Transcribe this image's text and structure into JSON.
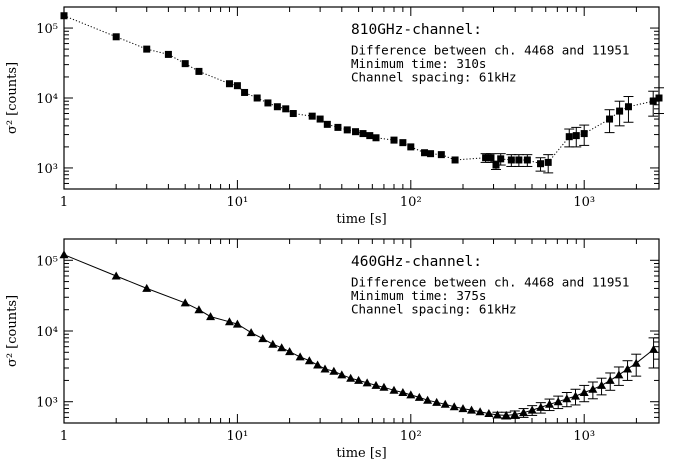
{
  "chart_data": [
    {
      "type": "scatter",
      "x_scale": "log",
      "y_scale": "log",
      "xlim": [
        1,
        2700
      ],
      "ylim": [
        500,
        200000
      ],
      "xlabel": "time [s]",
      "ylabel": "σ² [counts]",
      "x_ticks": [
        "1",
        "10¹",
        "10²",
        "10³"
      ],
      "y_ticks": [
        "10³",
        "10⁴",
        "10⁵"
      ],
      "marker": "square",
      "line_style": "dotted",
      "annotation": [
        "810GHz-channel:",
        "Difference between ch. 4468 and 11951",
        "Minimum time: 310s",
        "Channel spacing: 61kHz"
      ],
      "series": [
        {
          "x": [
            1,
            2,
            3,
            4,
            5,
            6,
            9,
            10,
            11,
            13,
            15,
            17,
            19,
            21,
            27,
            30,
            33,
            38,
            43,
            48,
            53,
            58,
            63,
            80,
            90,
            100,
            120,
            130,
            150,
            180,
            270,
            290,
            310,
            330,
            380,
            420,
            470,
            560,
            620,
            820,
            900,
            1000,
            1400,
            1600,
            1800,
            2500,
            2700
          ],
          "y": [
            150000,
            75000,
            50000,
            42000,
            31000,
            24000,
            16000,
            15000,
            12000,
            10000,
            8500,
            7500,
            7000,
            6000,
            5500,
            5000,
            4200,
            3800,
            3500,
            3300,
            3100,
            2900,
            2700,
            2500,
            2300,
            2000,
            1650,
            1600,
            1550,
            1300,
            1400,
            1400,
            1100,
            1350,
            1300,
            1300,
            1300,
            1150,
            1200,
            2800,
            2900,
            3100,
            5000,
            6500,
            7500,
            9000,
            10000
          ],
          "err": [
            0,
            0,
            0,
            0,
            0,
            0,
            0,
            0,
            0,
            0,
            0,
            0,
            0,
            0,
            0,
            0,
            0,
            0,
            0,
            0,
            0,
            0,
            0,
            0,
            0,
            0,
            0,
            0,
            0,
            0,
            200,
            200,
            150,
            250,
            250,
            250,
            250,
            250,
            350,
            800,
            900,
            1000,
            1800,
            2500,
            3000,
            3500,
            4000
          ]
        }
      ]
    },
    {
      "type": "scatter",
      "x_scale": "log",
      "y_scale": "log",
      "xlim": [
        1,
        2700
      ],
      "ylim": [
        500,
        200000
      ],
      "xlabel": "time [s]",
      "ylabel": "σ² [counts]",
      "x_ticks": [
        "1",
        "10¹",
        "10²",
        "10³"
      ],
      "y_ticks": [
        "10³",
        "10⁴",
        "10⁵"
      ],
      "marker": "triangle",
      "line_style": "solid",
      "annotation": [
        "460GHz-channel:",
        "Difference between ch. 4468 and 11951",
        "Minimum time: 375s",
        "Channel spacing: 61kHz"
      ],
      "series": [
        {
          "x": [
            1,
            2,
            3,
            5,
            6,
            7,
            9,
            10,
            12,
            14,
            16,
            18,
            20,
            23,
            26,
            29,
            32,
            36,
            40,
            45,
            50,
            56,
            63,
            70,
            80,
            90,
            100,
            112,
            125,
            141,
            158,
            178,
            200,
            224,
            251,
            282,
            316,
            355,
            398,
            447,
            501,
            562,
            631,
            708,
            794,
            891,
            1000,
            1122,
            1259,
            1413,
            1585,
            1778,
            1995,
            2512
          ],
          "y": [
            120000,
            60000,
            40000,
            25000,
            20000,
            16000,
            13500,
            12500,
            9500,
            7800,
            6500,
            5800,
            5100,
            4300,
            3800,
            3300,
            2900,
            2700,
            2400,
            2150,
            2000,
            1850,
            1700,
            1600,
            1450,
            1350,
            1250,
            1150,
            1050,
            980,
            920,
            850,
            800,
            760,
            720,
            680,
            650,
            640,
            660,
            700,
            760,
            830,
            920,
            1000,
            1100,
            1200,
            1350,
            1500,
            1700,
            2000,
            2400,
            2900,
            3500,
            5500
          ],
          "err": [
            0,
            0,
            0,
            0,
            0,
            0,
            0,
            0,
            0,
            0,
            0,
            0,
            0,
            0,
            0,
            0,
            0,
            0,
            0,
            0,
            0,
            0,
            0,
            0,
            0,
            0,
            0,
            0,
            0,
            0,
            0,
            0,
            0,
            0,
            0,
            0,
            60,
            70,
            80,
            100,
            120,
            140,
            170,
            200,
            250,
            300,
            350,
            400,
            450,
            550,
            700,
            900,
            1200,
            2500
          ]
        }
      ]
    }
  ]
}
